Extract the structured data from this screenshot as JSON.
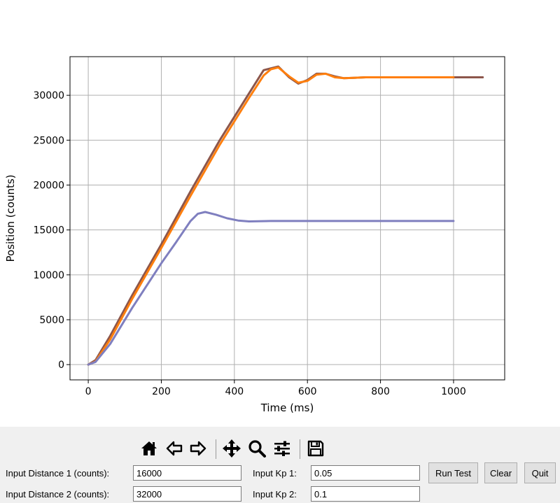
{
  "chart_data": {
    "type": "line",
    "title": "",
    "xlabel": "Time (ms)",
    "ylabel": "Position (counts)",
    "xlim": [
      -50,
      1140
    ],
    "ylim": [
      -1700,
      34300
    ],
    "xticks": [
      0,
      200,
      400,
      600,
      800,
      1000
    ],
    "yticks": [
      0,
      5000,
      10000,
      15000,
      20000,
      25000,
      30000
    ],
    "grid": true,
    "series": [
      {
        "color": "#8c564b",
        "points": [
          [
            0,
            0
          ],
          [
            20,
            500
          ],
          [
            60,
            3200
          ],
          [
            120,
            7700
          ],
          [
            200,
            13400
          ],
          [
            280,
            19300
          ],
          [
            360,
            25000
          ],
          [
            440,
            30200
          ],
          [
            480,
            32800
          ],
          [
            520,
            33200
          ],
          [
            550,
            32000
          ],
          [
            575,
            31300
          ],
          [
            600,
            31700
          ],
          [
            625,
            32400
          ],
          [
            650,
            32400
          ],
          [
            675,
            32100
          ],
          [
            700,
            31900
          ],
          [
            760,
            32000
          ],
          [
            900,
            32000
          ],
          [
            1080,
            32000
          ]
        ]
      },
      {
        "color": "#ff7f0e",
        "points": [
          [
            0,
            0
          ],
          [
            20,
            350
          ],
          [
            60,
            2800
          ],
          [
            120,
            7300
          ],
          [
            200,
            13000
          ],
          [
            280,
            18800
          ],
          [
            360,
            24500
          ],
          [
            440,
            29700
          ],
          [
            480,
            32200
          ],
          [
            500,
            32900
          ],
          [
            520,
            33100
          ],
          [
            550,
            32100
          ],
          [
            575,
            31400
          ],
          [
            600,
            31600
          ],
          [
            625,
            32300
          ],
          [
            650,
            32400
          ],
          [
            675,
            32000
          ],
          [
            700,
            31900
          ],
          [
            760,
            32000
          ],
          [
            1000,
            32000
          ]
        ]
      },
      {
        "color": "#7f7fbf",
        "points": [
          [
            0,
            0
          ],
          [
            20,
            300
          ],
          [
            60,
            2300
          ],
          [
            120,
            6300
          ],
          [
            200,
            11300
          ],
          [
            240,
            13600
          ],
          [
            280,
            16000
          ],
          [
            300,
            16800
          ],
          [
            320,
            17000
          ],
          [
            350,
            16700
          ],
          [
            380,
            16300
          ],
          [
            410,
            16050
          ],
          [
            440,
            15950
          ],
          [
            500,
            16000
          ],
          [
            1000,
            16000
          ]
        ]
      }
    ]
  },
  "toolbar": {
    "icons": [
      "home-icon",
      "back-arrow-icon",
      "forward-arrow-icon",
      "pan-icon",
      "zoom-icon",
      "configure-subplots-icon",
      "save-icon"
    ]
  },
  "form": {
    "dist1_label": "Input Distance 1 (counts):",
    "dist1_value": "16000",
    "dist2_label": "Input Distance 2 (counts):",
    "dist2_value": "32000",
    "kp1_label": "Input Kp 1:",
    "kp1_value": "0.05",
    "kp2_label": "Input Kp 2:",
    "kp2_value": "0.1"
  },
  "buttons": {
    "run_label": "Run Test",
    "clear_label": "Clear",
    "quit_label": "Quit"
  }
}
